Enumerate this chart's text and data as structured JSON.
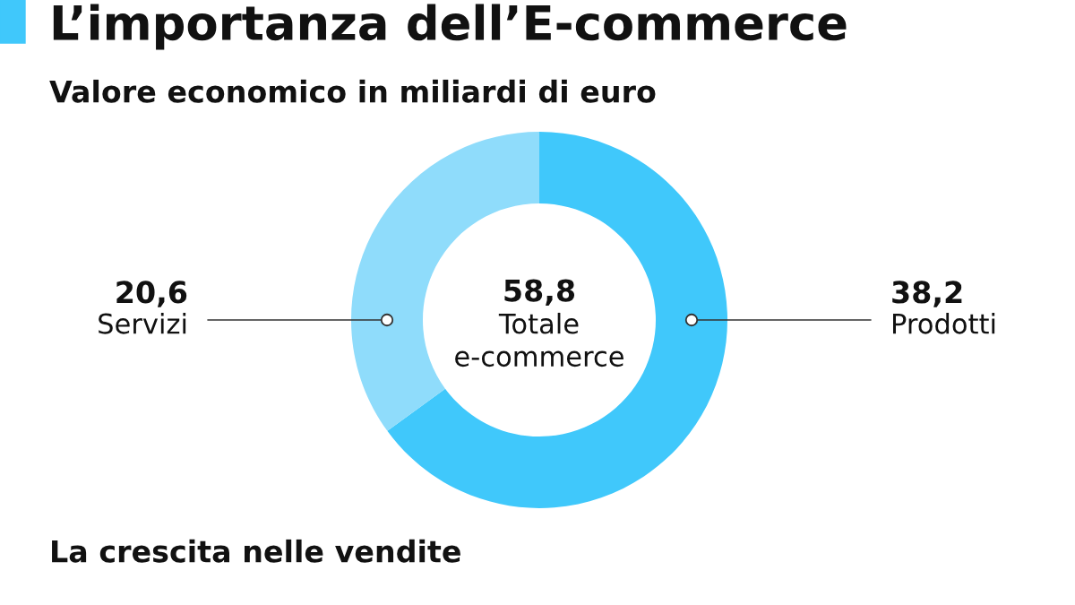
{
  "chart_data": {
    "type": "donut",
    "title": "L’importanza dell’E-commerce",
    "subtitle": "Valore economico in miliardi di euro",
    "categories": [
      "Prodotti",
      "Servizi"
    ],
    "values": [
      38.2,
      20.6
    ],
    "colors": [
      "#40c8fb",
      "#8fdcfb"
    ],
    "value_labels": [
      "38,2",
      "20,6"
    ],
    "annotations": [
      "58,8",
      "Totale\ne-commerce",
      "La crescita nelle vendite"
    ]
  }
}
